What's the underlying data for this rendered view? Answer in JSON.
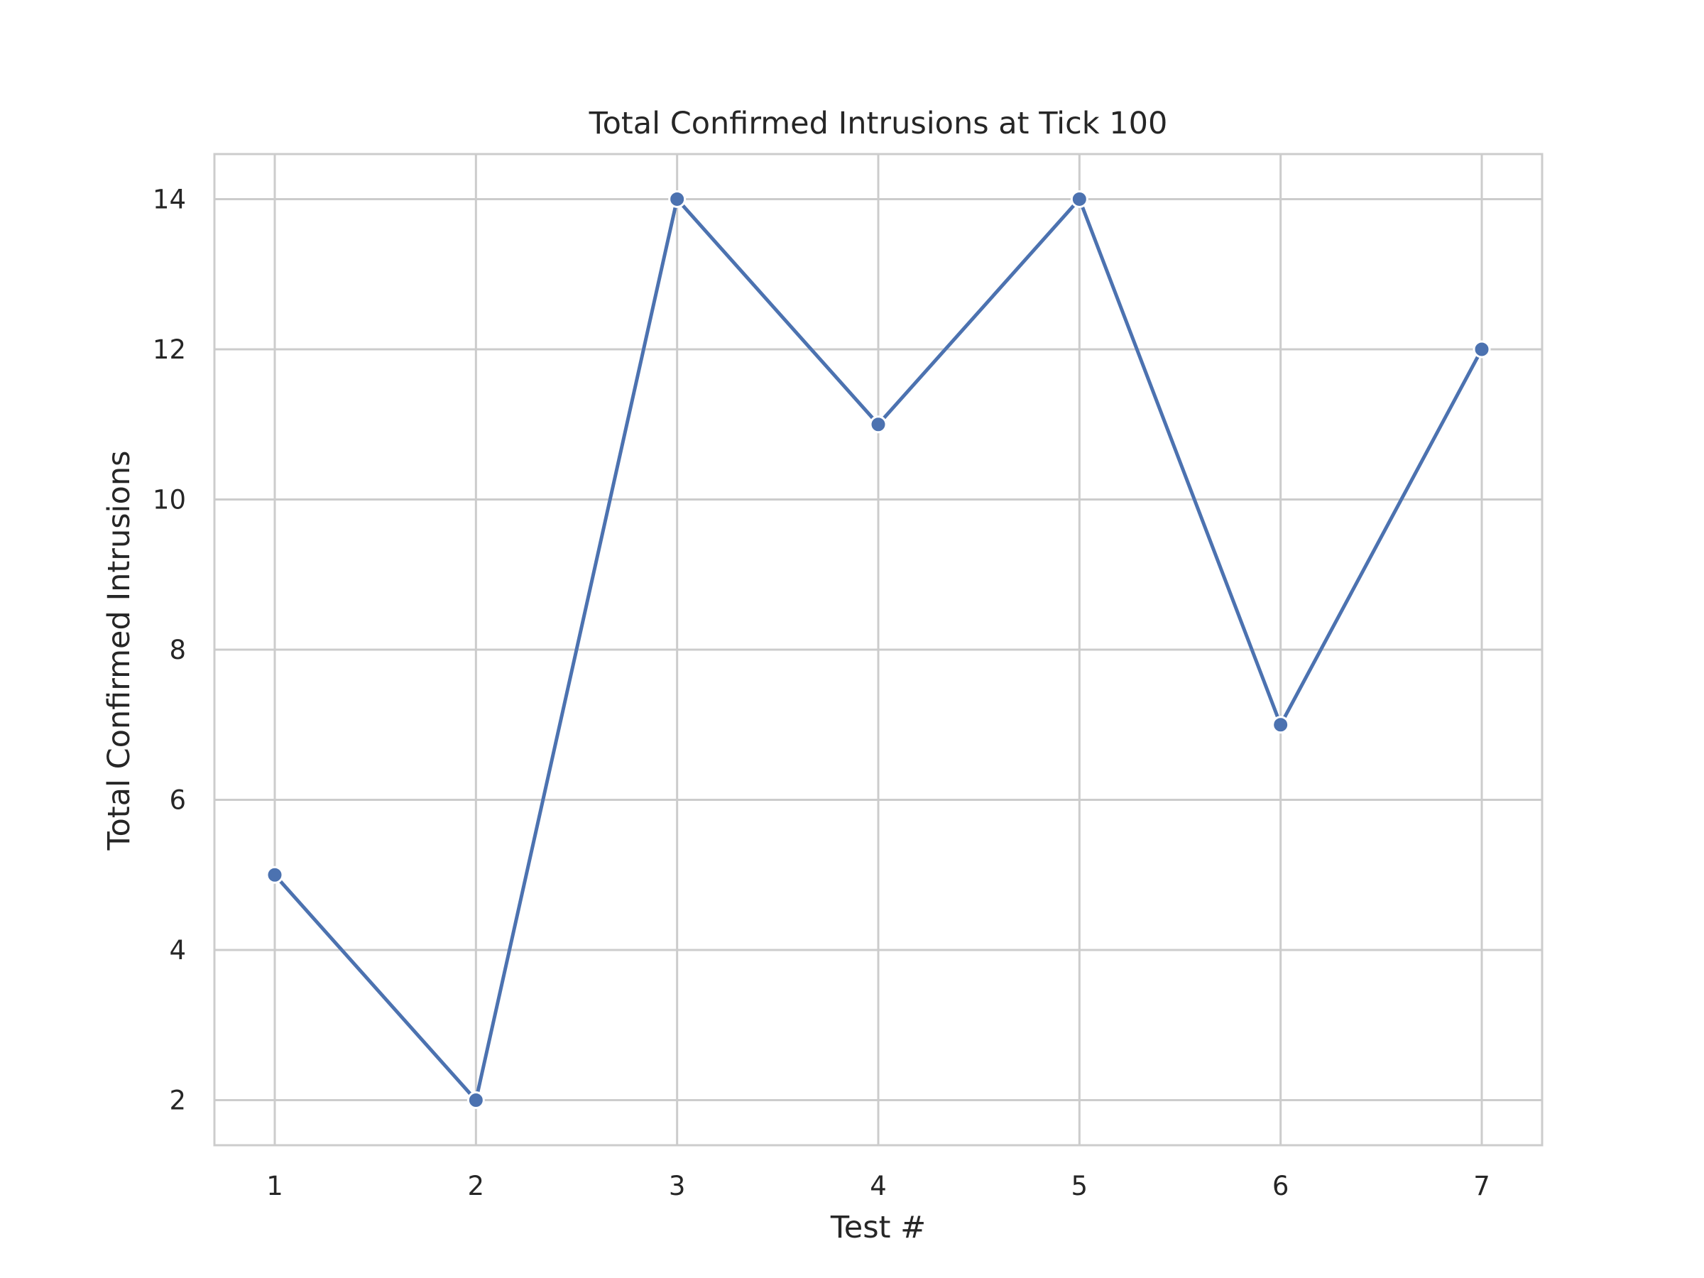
{
  "chart_data": {
    "type": "line",
    "title": "Total Confirmed Intrusions at Tick 100",
    "xlabel": "Test #",
    "ylabel": "Total Confirmed Intrusions",
    "x": [
      1,
      2,
      3,
      4,
      5,
      6,
      7
    ],
    "series": [
      {
        "values": [
          5,
          2,
          14,
          11,
          14,
          7,
          12
        ],
        "color": "#4c72b0"
      }
    ],
    "xticks": [
      "1",
      "2",
      "3",
      "4",
      "5",
      "6",
      "7"
    ],
    "yticks": [
      "2",
      "4",
      "6",
      "8",
      "10",
      "12",
      "14"
    ],
    "xlim": [
      0.7,
      7.3
    ],
    "ylim": [
      1.4,
      14.6
    ],
    "grid": true,
    "legend": "none",
    "colors": {
      "line": "#4c72b0",
      "grid": "#cccccc",
      "text": "#262626",
      "marker_edge": "#ffffff"
    }
  }
}
